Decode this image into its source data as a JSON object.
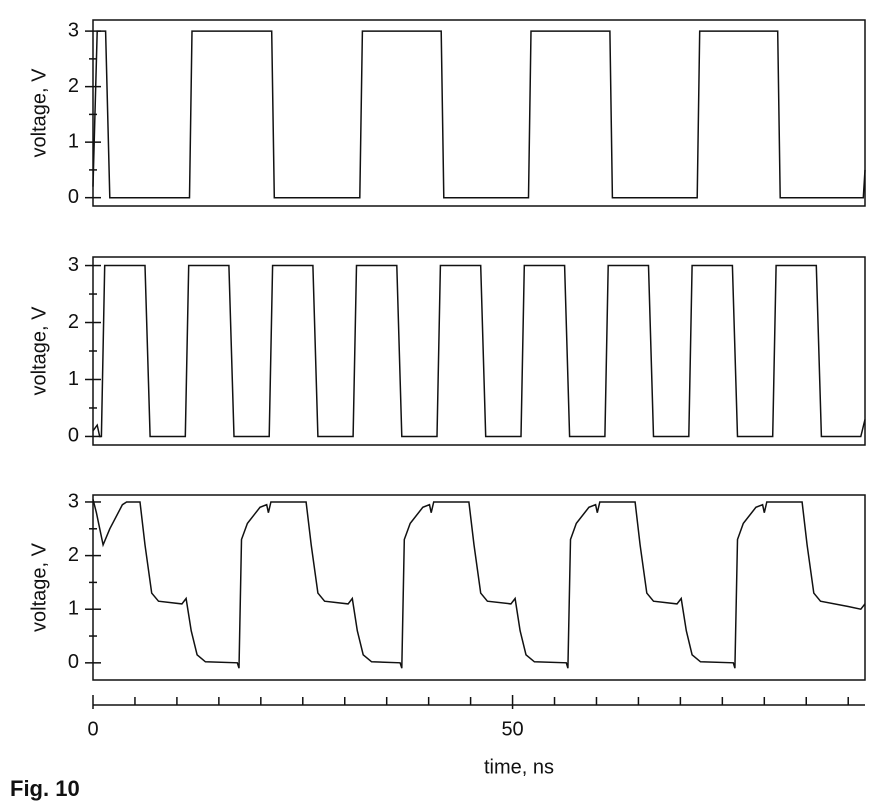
{
  "chart_data": [
    {
      "type": "line",
      "ylabel": "voltage, V",
      "xlim": [
        0,
        92
      ],
      "ylim": [
        -0.15,
        3.2
      ],
      "yticks": [
        0,
        1,
        2,
        3
      ],
      "minor_yticks": [
        0.5,
        1.5,
        2.5
      ],
      "color": "#000000",
      "x": [
        0,
        0.5,
        1.5,
        2,
        11.5,
        11.8,
        21.3,
        21.6,
        31.8,
        32.1,
        41.5,
        41.8,
        51.9,
        52.2,
        61.6,
        61.9,
        72,
        72.3,
        81.6,
        81.9,
        91.8,
        92
      ],
      "values": [
        0.2,
        3,
        3,
        0,
        0,
        3,
        3,
        0,
        0,
        3,
        3,
        0,
        0,
        3,
        3,
        0,
        0,
        3,
        3,
        0,
        0,
        0.5
      ]
    },
    {
      "type": "line",
      "ylabel": "voltage, V",
      "xlim": [
        0,
        92
      ],
      "ylim": [
        -0.15,
        3.15
      ],
      "yticks": [
        0,
        1,
        2,
        3
      ],
      "minor_yticks": [
        0.5,
        1.5,
        2.5
      ],
      "color": "#000000",
      "x": [
        0,
        0.5,
        0.8,
        1,
        1.4,
        6.2,
        6.8,
        11,
        11.4,
        16.2,
        16.8,
        21,
        21.4,
        26.2,
        26.8,
        31,
        31.4,
        36.2,
        36.8,
        41,
        41.4,
        46.2,
        46.8,
        51,
        51.4,
        56.2,
        56.8,
        61,
        61.4,
        66.2,
        66.8,
        71,
        71.4,
        76.2,
        76.8,
        81,
        81.4,
        86.2,
        86.8,
        91.5,
        92
      ],
      "values": [
        0.1,
        0.2,
        0,
        0,
        3,
        3,
        0,
        0,
        3,
        3,
        0,
        0,
        3,
        3,
        0,
        0,
        3,
        3,
        0,
        0,
        3,
        3,
        0,
        0,
        3,
        3,
        0,
        0,
        3,
        3,
        0,
        0,
        3,
        3,
        0,
        0,
        3,
        3,
        0,
        0,
        0.3
      ]
    },
    {
      "type": "line",
      "ylabel": "voltage, V",
      "xlabel": "time, ns",
      "xlim": [
        0,
        92
      ],
      "ylim": [
        -0.32,
        3.13
      ],
      "yticks": [
        0,
        1,
        2,
        3
      ],
      "minor_yticks": [
        0.5,
        1.5,
        2.5
      ],
      "xticks": [
        0,
        50
      ],
      "minor_xticks": [
        5,
        10,
        15,
        20,
        25,
        30,
        35,
        40,
        45,
        55,
        60,
        65,
        70,
        75,
        80,
        85,
        90
      ],
      "color": "#000000",
      "x": [
        0,
        0.4,
        1.2,
        2,
        3.5,
        4,
        5.6,
        6.2,
        7,
        7.8,
        10.6,
        11.1,
        11.7,
        12.4,
        13.4,
        17.2,
        17.4,
        17.7,
        18.4,
        19.9,
        20.7,
        20.9,
        21.2,
        25.4,
        26,
        26.8,
        27.6,
        30.4,
        30.9,
        31.5,
        32.2,
        33.2,
        36.6,
        36.8,
        37.1,
        37.8,
        39.3,
        40.1,
        40.3,
        40.6,
        44.8,
        45.4,
        46.2,
        47,
        49.8,
        50.3,
        50.9,
        51.6,
        52.6,
        56.4,
        56.6,
        56.9,
        57.6,
        59.1,
        59.9,
        60.1,
        60.4,
        64.6,
        65.2,
        66,
        66.8,
        69.6,
        70.1,
        70.7,
        71.4,
        72.4,
        76.3,
        76.5,
        76.8,
        77.5,
        79,
        79.8,
        80,
        80.3,
        84.5,
        85.1,
        85.9,
        86.7,
        90,
        91.5,
        92
      ],
      "values": [
        3.05,
        2.8,
        2.2,
        2.5,
        2.95,
        3,
        3,
        2.2,
        1.3,
        1.15,
        1.1,
        1.2,
        0.6,
        0.15,
        0.02,
        0,
        -0.1,
        2.3,
        2.6,
        2.9,
        2.95,
        2.8,
        3,
        3,
        2.2,
        1.3,
        1.15,
        1.1,
        1.2,
        0.6,
        0.15,
        0.02,
        0,
        -0.1,
        2.3,
        2.6,
        2.9,
        2.95,
        2.8,
        3,
        3,
        2.2,
        1.3,
        1.15,
        1.1,
        1.2,
        0.6,
        0.15,
        0.02,
        0,
        -0.1,
        2.3,
        2.6,
        2.9,
        2.95,
        2.8,
        3,
        3,
        2.2,
        1.3,
        1.15,
        1.1,
        1.2,
        0.6,
        0.15,
        0.02,
        0,
        -0.1,
        2.3,
        2.6,
        2.9,
        2.95,
        2.8,
        3,
        3,
        2.2,
        1.3,
        1.15,
        1.05,
        1.0,
        1.1
      ]
    }
  ],
  "caption": "Fig. 10"
}
